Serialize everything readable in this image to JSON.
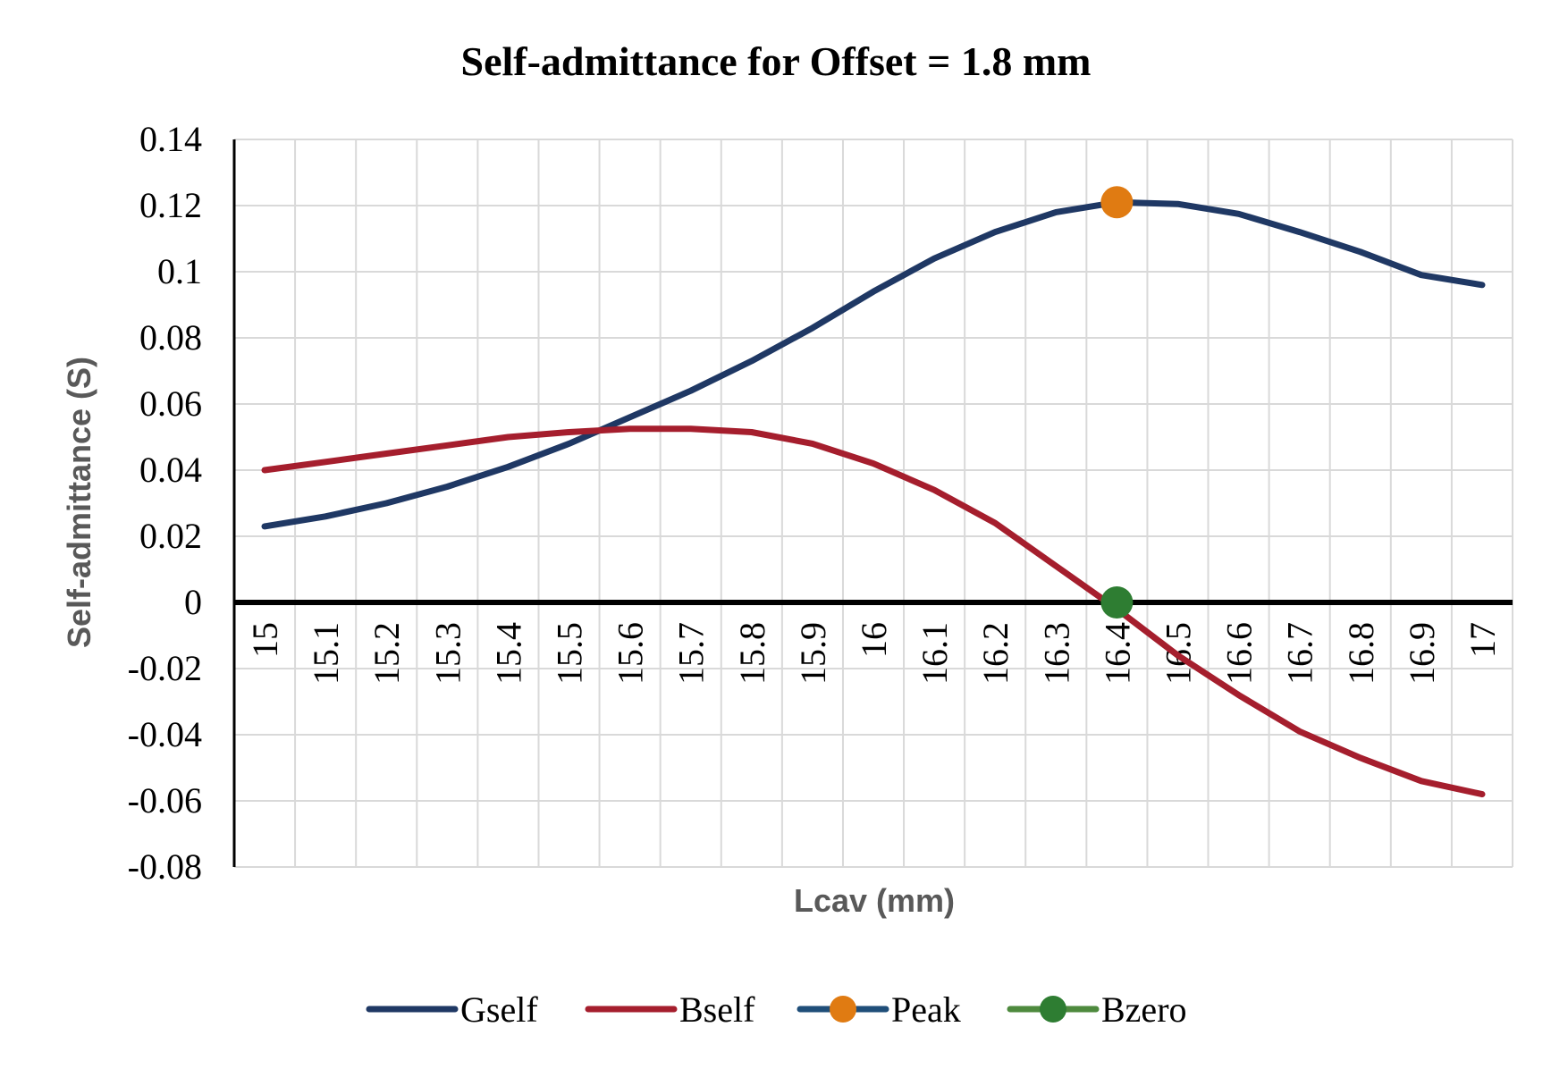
{
  "chart_data": {
    "type": "line",
    "title": "Self-admittance for Offset = 1.8 mm",
    "xlabel": "Lcav (mm)",
    "ylabel": "Self-admittance (S)",
    "categories": [
      "15",
      "15.1",
      "15.2",
      "15.3",
      "15.4",
      "15.5",
      "15.6",
      "15.7",
      "15.8",
      "15.9",
      "16",
      "16.1",
      "16.2",
      "16.3",
      "16.4",
      "16.5",
      "16.6",
      "16.7",
      "16.8",
      "16.9",
      "17"
    ],
    "yticks": [
      "0.14",
      "0.12",
      "0.1",
      "0.08",
      "0.06",
      "0.04",
      "0.02",
      "0",
      "-0.02",
      "-0.04",
      "-0.06",
      "-0.08"
    ],
    "ylim": [
      -0.08,
      0.14
    ],
    "grid": true,
    "legend_position": "bottom",
    "series": [
      {
        "name": "Gself",
        "color": "#1f3864",
        "values": [
          0.023,
          0.026,
          0.03,
          0.035,
          0.041,
          0.048,
          0.056,
          0.064,
          0.073,
          0.083,
          0.094,
          0.104,
          0.112,
          0.118,
          0.121,
          0.1205,
          0.1175,
          0.112,
          0.106,
          0.099,
          0.096
        ]
      },
      {
        "name": "Bself",
        "color": "#a51e2d",
        "values": [
          0.04,
          0.0425,
          0.045,
          0.0475,
          0.05,
          0.0515,
          0.0525,
          0.0525,
          0.0515,
          0.048,
          0.042,
          0.034,
          0.024,
          0.011,
          -0.002,
          -0.016,
          -0.028,
          -0.039,
          -0.047,
          -0.054,
          -0.058
        ]
      },
      {
        "name": "Peak",
        "color": "#e07b12",
        "line_color": "#1f4e79",
        "points": [
          {
            "x": "16.4",
            "y": 0.121
          }
        ]
      },
      {
        "name": "Bzero",
        "color": "#2e7d32",
        "line_color": "#4e8a3e",
        "points": [
          {
            "x": "16.4",
            "y": 0.0
          }
        ]
      }
    ]
  }
}
